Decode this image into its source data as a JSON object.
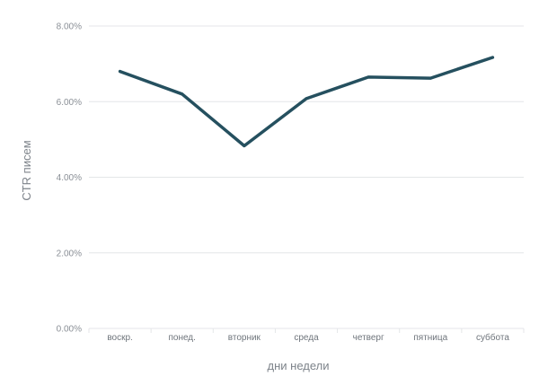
{
  "chart_data": {
    "type": "line",
    "categories": [
      "воскр.",
      "понед.",
      "вторник",
      "среда",
      "четверг",
      "пятница",
      "суббота"
    ],
    "series": [
      {
        "values": [
          6.8,
          6.2,
          4.83,
          6.08,
          6.65,
          6.62,
          7.17
        ]
      }
    ],
    "yticks": [
      "0.00%",
      "2.00%",
      "4.00%",
      "6.00%",
      "8.00%"
    ],
    "ylim": [
      0,
      8
    ],
    "xlabel": "дни недели",
    "ylabel": "CTR писем",
    "grid": true,
    "colors": {
      "line": "#25505f",
      "grid": "#e4e6e8"
    }
  }
}
